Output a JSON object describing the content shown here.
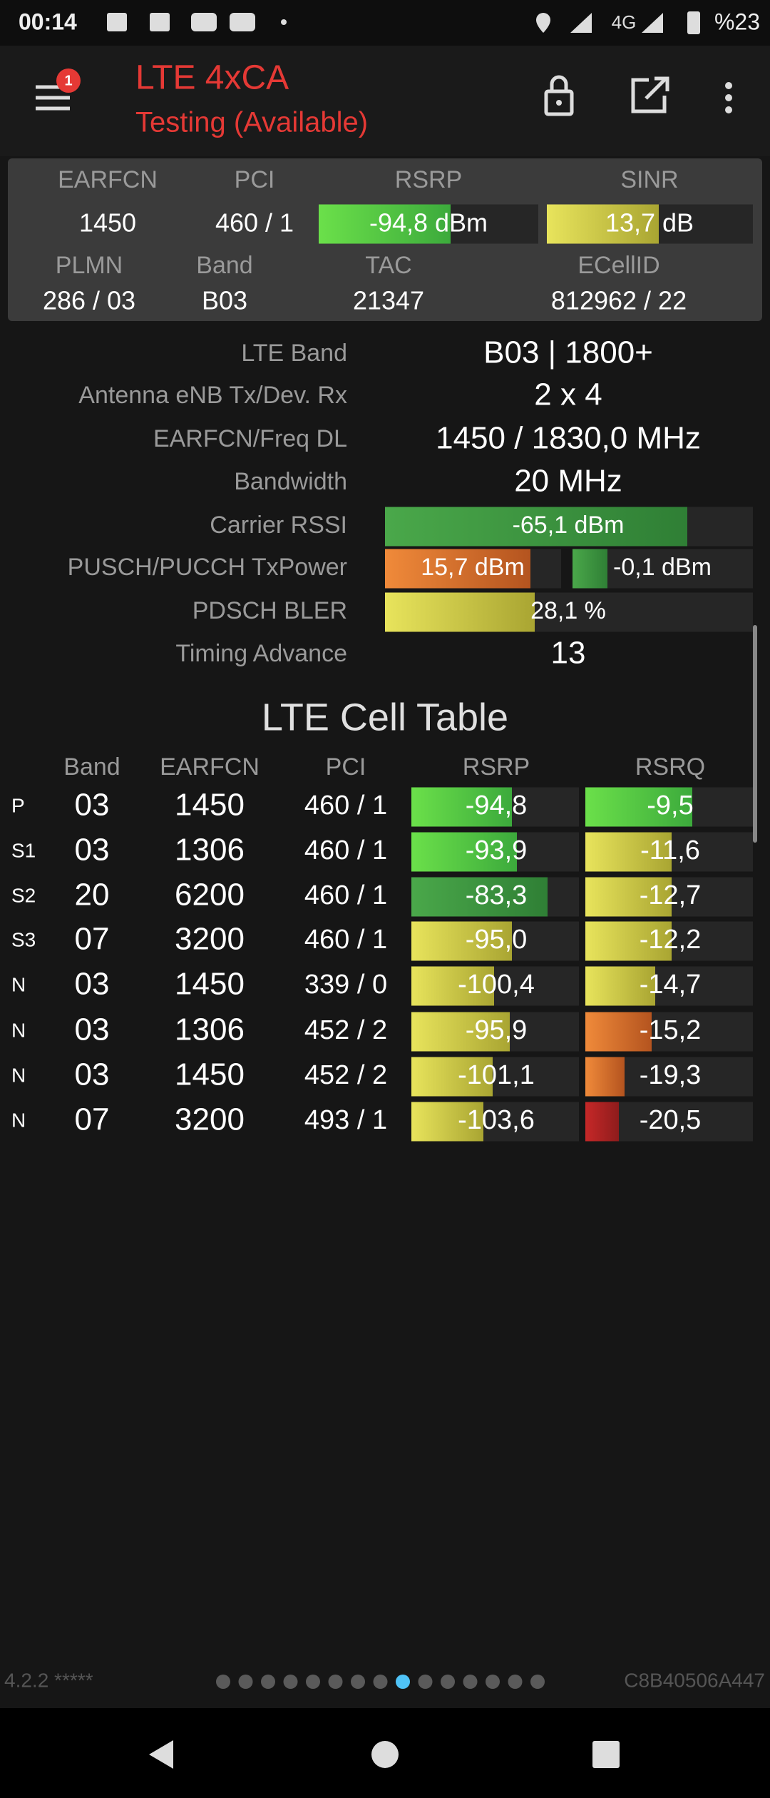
{
  "status_bar": {
    "time": "00:14",
    "network": "4G",
    "battery": "%23"
  },
  "toolbar": {
    "badge": "1",
    "title": "LTE 4xCA",
    "subtitle": "Testing (Available)"
  },
  "summary": {
    "row1_headers": [
      "EARFCN",
      "PCI",
      "RSRP",
      "SINR"
    ],
    "row1_values": [
      "1450",
      "460 / 1",
      "-94,8 dBm",
      "13,7 dB"
    ],
    "row2_headers": [
      "PLMN",
      "Band",
      "TAC",
      "ECellID"
    ],
    "row2_values": [
      "286 / 03",
      "B03",
      "21347",
      "812962 / 22"
    ]
  },
  "details": {
    "rows": [
      {
        "label": "LTE Band",
        "values": [
          "B03 | 1800+"
        ]
      },
      {
        "label": "Antenna eNB Tx/Dev. Rx",
        "values": [
          "2 x 4"
        ]
      },
      {
        "label": "EARFCN/Freq DL",
        "values": [
          "1450 / 1830,0 MHz"
        ]
      },
      {
        "label": "Bandwidth",
        "values": [
          "20 MHz"
        ]
      },
      {
        "label": "Carrier RSSI",
        "values": [
          "-65,1 dBm"
        ]
      },
      {
        "label": "PUSCH/PUCCH TxPower",
        "values": [
          "15,7 dBm",
          "-0,1 dBm"
        ]
      },
      {
        "label": "PDSCH BLER",
        "values": [
          "28,1 %"
        ]
      },
      {
        "label": "Timing Advance",
        "values": [
          "13"
        ]
      }
    ]
  },
  "cell_table": {
    "title": "LTE Cell Table",
    "headers": [
      "Band",
      "EARFCN",
      "PCI",
      "RSRP",
      "RSRQ"
    ],
    "rows": [
      [
        "P",
        "03",
        "1450",
        "460 / 1",
        "-94,8",
        "-9,5"
      ],
      [
        "S1",
        "03",
        "1306",
        "460 / 1",
        "-93,9",
        "-11,6"
      ],
      [
        "S2",
        "20",
        "6200",
        "460 / 1",
        "-83,3",
        "-12,7"
      ],
      [
        "S3",
        "07",
        "3200",
        "460 / 1",
        "-95,0",
        "-12,2"
      ],
      [
        "N",
        "03",
        "1450",
        "339 / 0",
        "-100,4",
        "-14,7"
      ],
      [
        "N",
        "03",
        "1306",
        "452 / 2",
        "-95,9",
        "-15,2"
      ],
      [
        "N",
        "03",
        "1450",
        "452 / 2",
        "-101,1",
        "-19,3"
      ],
      [
        "N",
        "07",
        "3200",
        "493 / 1",
        "-103,6",
        "-20,5"
      ]
    ]
  },
  "footer": {
    "version": "4.2.2 *****",
    "device_id": "C8B40506A447"
  }
}
